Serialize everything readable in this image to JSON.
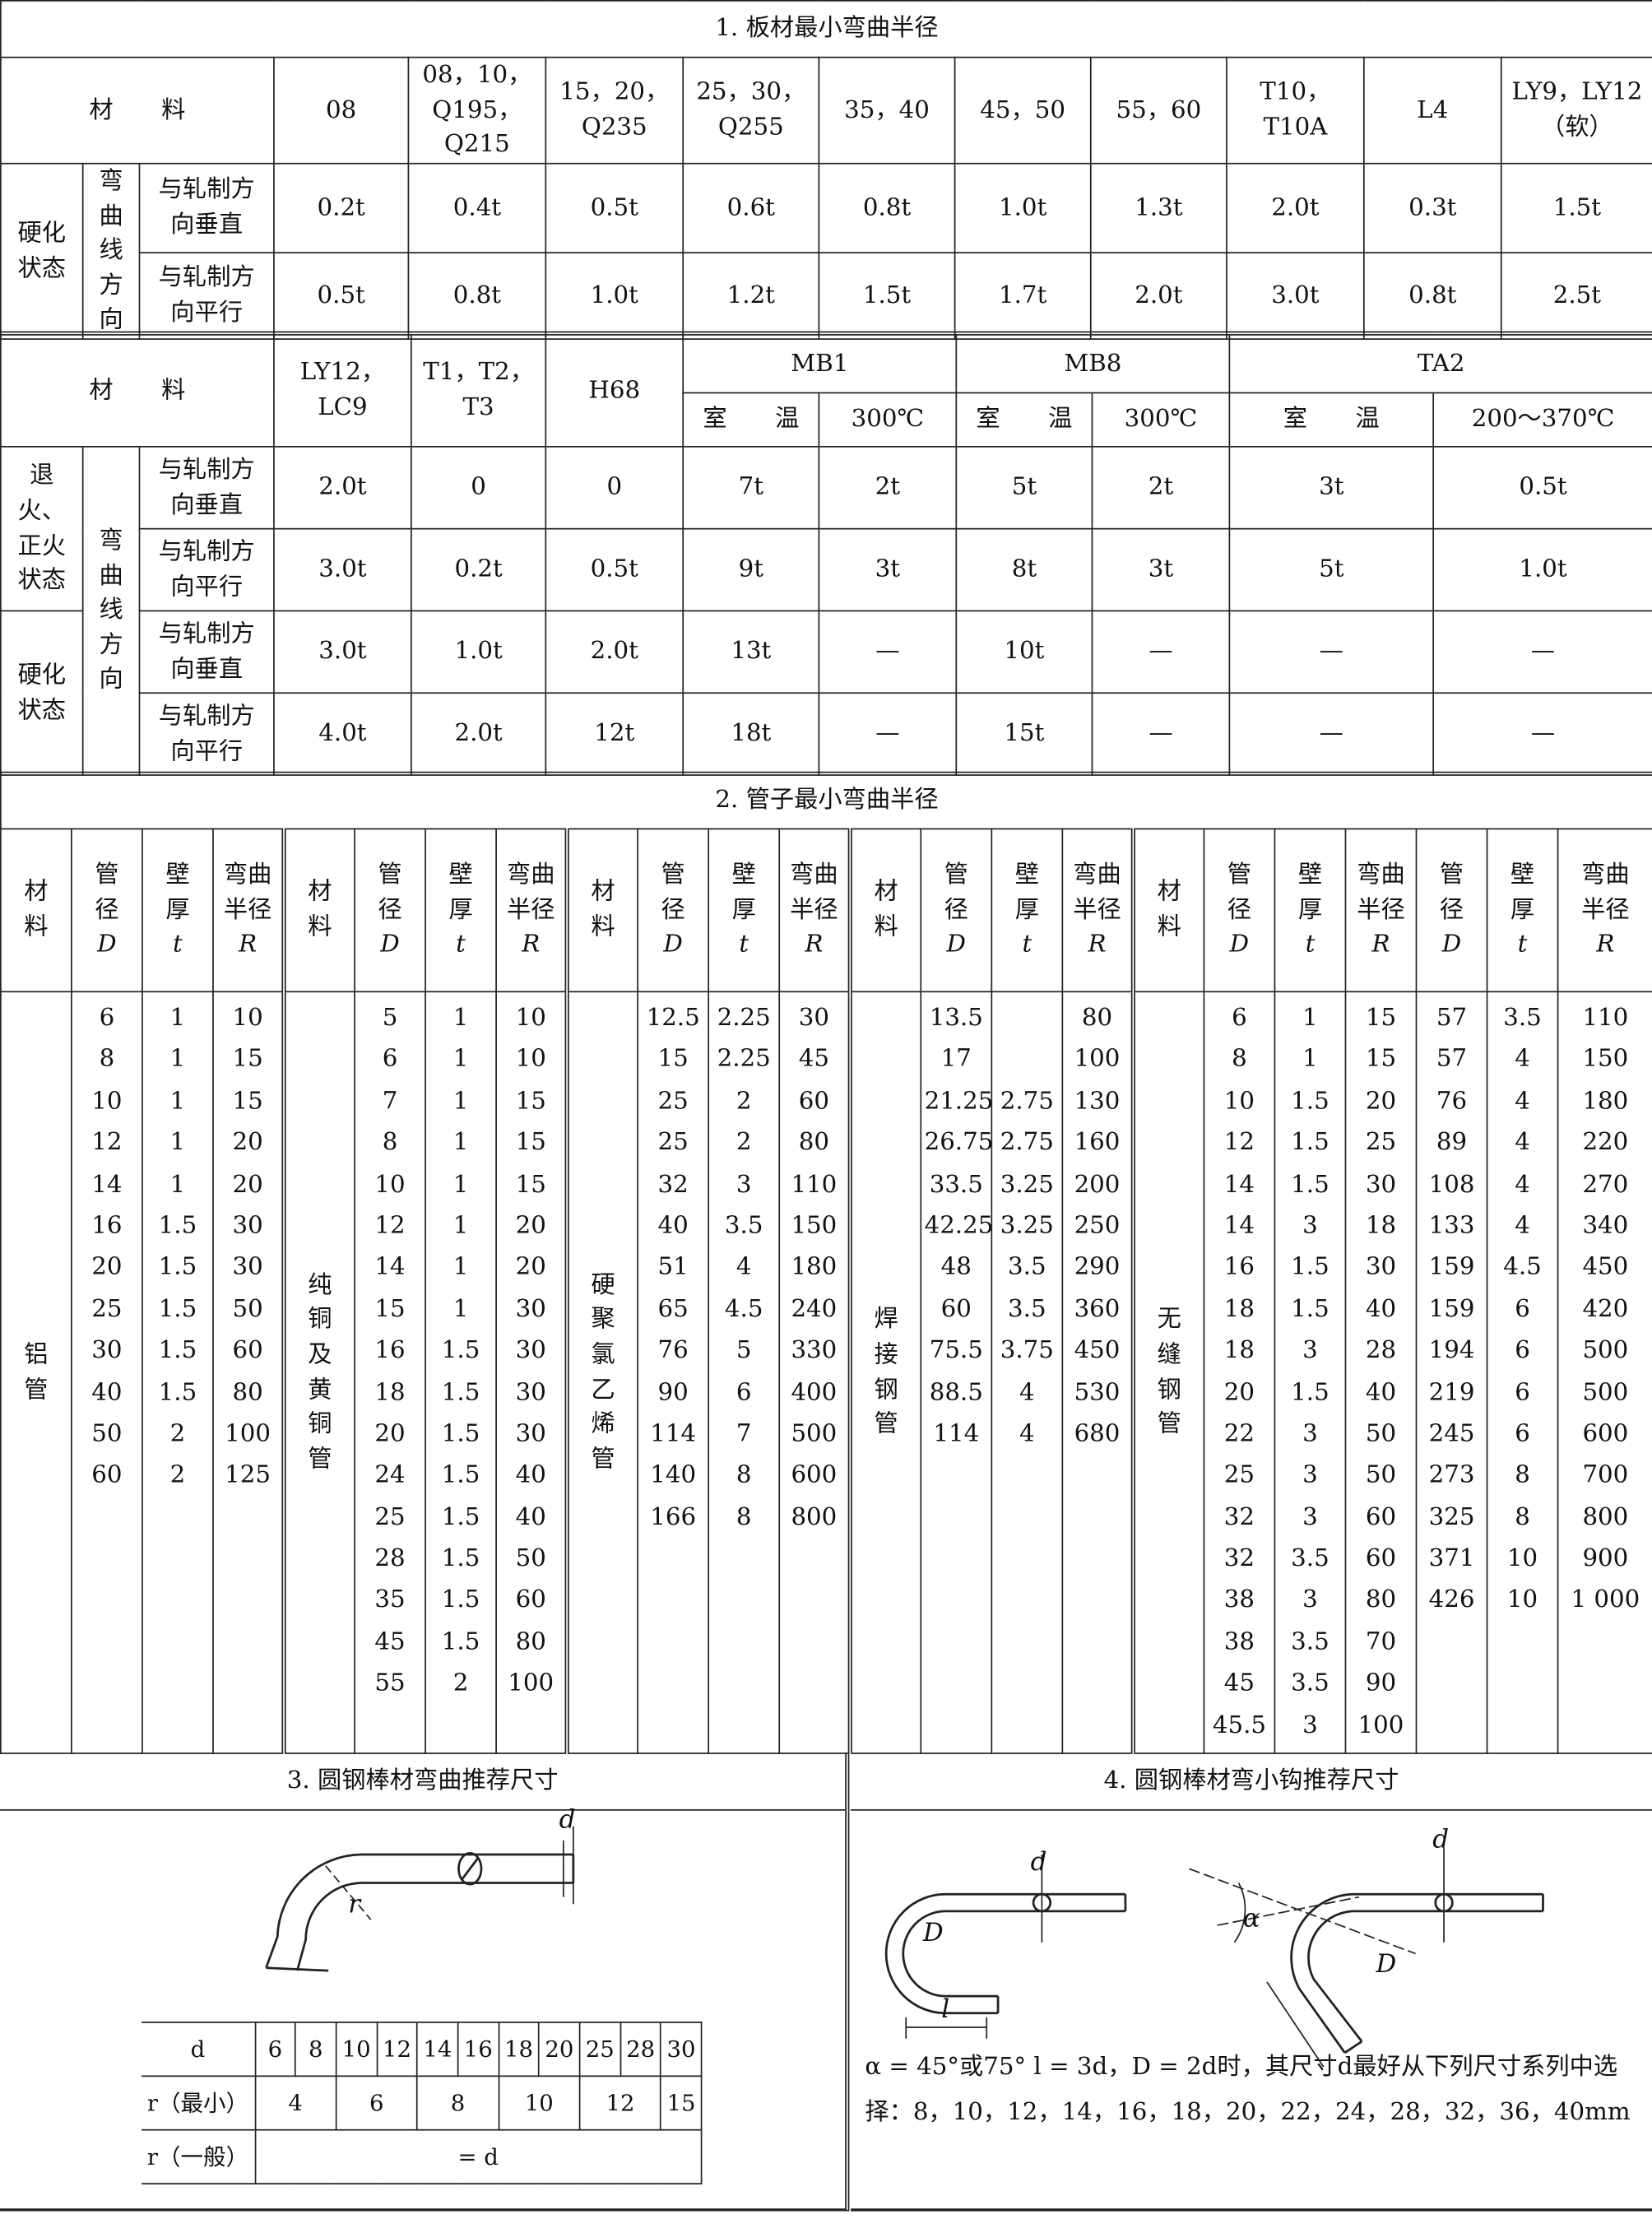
{
  "section1": {
    "title": "1. 板材最小弯曲半径",
    "table_a": {
      "header": [
        "材　　料",
        "08",
        "08，10，Q195，Q215",
        "15，20，Q235",
        "25，30，Q255",
        "35，40",
        "45，50",
        "55，60",
        "T10，T10A",
        "L4",
        "LY9，LY12（软）"
      ],
      "group": "硬化状态",
      "direction": "弯曲线方向",
      "rows": [
        {
          "label": "与轧制方向垂直",
          "values": [
            "0.2t",
            "0.4t",
            "0.5t",
            "0.6t",
            "0.8t",
            "1.0t",
            "1.3t",
            "2.0t",
            "0.3t",
            "1.5t"
          ]
        },
        {
          "label": "与轧制方向平行",
          "values": [
            "0.5t",
            "0.8t",
            "1.0t",
            "1.2t",
            "1.5t",
            "1.7t",
            "2.0t",
            "3.0t",
            "0.8t",
            "2.5t"
          ]
        }
      ]
    },
    "table_b": {
      "header": [
        "材　　料",
        "LY12，LC9",
        "T1，T2，T3",
        "H68",
        "MB1",
        "MB8",
        "TA2"
      ],
      "subheader": [
        "室　　温",
        "300℃",
        "室　　温",
        "300℃",
        "室　　温",
        "200～370℃"
      ],
      "direction": "弯曲线方向",
      "groups": [
        {
          "label": "退火、正火状态",
          "rows": [
            {
              "label": "与轧制方向垂直",
              "values": [
                "2.0t",
                "0",
                "0",
                "7t",
                "2t",
                "5t",
                "2t",
                "3t",
                "0.5t"
              ]
            },
            {
              "label": "与轧制方向平行",
              "values": [
                "3.0t",
                "0.2t",
                "0.5t",
                "9t",
                "3t",
                "8t",
                "3t",
                "5t",
                "1.0t"
              ]
            }
          ]
        },
        {
          "label": "硬化状态",
          "rows": [
            {
              "label": "与轧制方向垂直",
              "values": [
                "3.0t",
                "1.0t",
                "2.0t",
                "13t",
                "—",
                "10t",
                "—",
                "—",
                "—"
              ]
            },
            {
              "label": "与轧制方向平行",
              "values": [
                "4.0t",
                "2.0t",
                "12t",
                "18t",
                "—",
                "15t",
                "—",
                "—",
                "—"
              ]
            }
          ]
        }
      ]
    }
  },
  "section2": {
    "title": "2. 管子最小弯曲半径",
    "header": [
      "材料",
      "管径",
      "壁厚",
      "弯曲半径"
    ],
    "symbols": [
      "D",
      "t",
      "R"
    ],
    "groups": [
      {
        "material": "铝管",
        "columns": [
          [
            6,
            8,
            10,
            12,
            14,
            16,
            20,
            25,
            30,
            40,
            50,
            60
          ],
          [
            1,
            1,
            1,
            1,
            1,
            1.5,
            1.5,
            1.5,
            1.5,
            1.5,
            2,
            2
          ],
          [
            10,
            15,
            15,
            20,
            20,
            30,
            30,
            50,
            60,
            80,
            100,
            125
          ]
        ]
      },
      {
        "material": "纯铜及黄铜管",
        "columns": [
          [
            5,
            6,
            7,
            8,
            10,
            12,
            14,
            15,
            16,
            18,
            20,
            24,
            25,
            28,
            35,
            45,
            55
          ],
          [
            1,
            1,
            1,
            1,
            1,
            1,
            1,
            1,
            1.5,
            1.5,
            1.5,
            1.5,
            1.5,
            1.5,
            1.5,
            1.5,
            2
          ],
          [
            10,
            10,
            15,
            15,
            15,
            20,
            20,
            30,
            30,
            30,
            30,
            40,
            40,
            50,
            60,
            80,
            100
          ]
        ]
      },
      {
        "material": "硬聚氯乙烯管",
        "columns": [
          [
            12.5,
            15,
            25,
            25,
            32,
            40,
            51,
            65,
            76,
            90,
            114,
            140,
            166
          ],
          [
            2.25,
            2.25,
            2,
            2,
            3,
            3.5,
            4,
            4.5,
            5,
            6,
            7,
            8,
            8
          ],
          [
            30,
            45,
            60,
            80,
            110,
            150,
            180,
            240,
            330,
            400,
            500,
            600,
            800
          ]
        ]
      },
      {
        "material": "焊接钢管",
        "columns": [
          [
            13.5,
            17,
            21.25,
            26.75,
            33.5,
            42.25,
            48,
            60,
            75.5,
            88.5,
            114
          ],
          [
            null,
            null,
            2.75,
            2.75,
            3.25,
            3.25,
            3.5,
            3.5,
            3.75,
            4,
            4
          ],
          [
            80,
            100,
            130,
            160,
            200,
            250,
            290,
            360,
            450,
            530,
            680
          ]
        ]
      },
      {
        "material": "无缝钢管",
        "columns": [
          [
            6,
            8,
            10,
            12,
            14,
            14,
            16,
            18,
            18,
            20,
            22,
            25,
            32,
            32,
            38,
            38,
            45,
            45.5
          ],
          [
            1,
            1,
            1.5,
            1.5,
            1.5,
            3,
            1.5,
            1.5,
            3,
            1.5,
            3,
            3,
            3,
            3.5,
            3,
            3.5,
            3.5,
            3
          ],
          [
            15,
            15,
            20,
            25,
            30,
            18,
            30,
            40,
            28,
            40,
            50,
            50,
            60,
            60,
            80,
            70,
            90,
            100
          ],
          [
            57,
            57,
            76,
            89,
            108,
            133,
            159,
            159,
            194,
            219,
            245,
            273,
            325,
            371,
            426
          ],
          [
            3.5,
            4,
            4,
            4,
            4,
            4,
            4.5,
            6,
            6,
            6,
            6,
            8,
            8,
            10,
            10
          ],
          [
            110,
            150,
            180,
            220,
            270,
            340,
            450,
            420,
            500,
            500,
            600,
            700,
            800,
            900,
            {
              "value": 1000,
              "label": "1 000"
            }
          ]
        ]
      }
    ]
  },
  "section3": {
    "title": "3. 圆钢棒材弯曲推荐尺寸",
    "figure_labels": [
      "d",
      "r"
    ],
    "table": {
      "row_labels": [
        "d",
        "r（最小）",
        "r（一般）"
      ],
      "d": [
        6,
        8,
        10,
        12,
        14,
        16,
        18,
        20,
        25,
        28,
        30
      ],
      "r_min": [
        4,
        6,
        8,
        10,
        12,
        15
      ],
      "r_general": "= d"
    }
  },
  "section4": {
    "title": "4. 圆钢棒材弯小钩推荐尺寸",
    "figure_labels": [
      "d",
      "D",
      "l",
      "α",
      "d",
      "D"
    ],
    "note": "α = 45°或75° l = 3d，D = 2d时，其尺寸d最好从下列尺寸系列中选 择：8，10，12，14，16，18，20，22，24，28，32，36，40mm"
  }
}
